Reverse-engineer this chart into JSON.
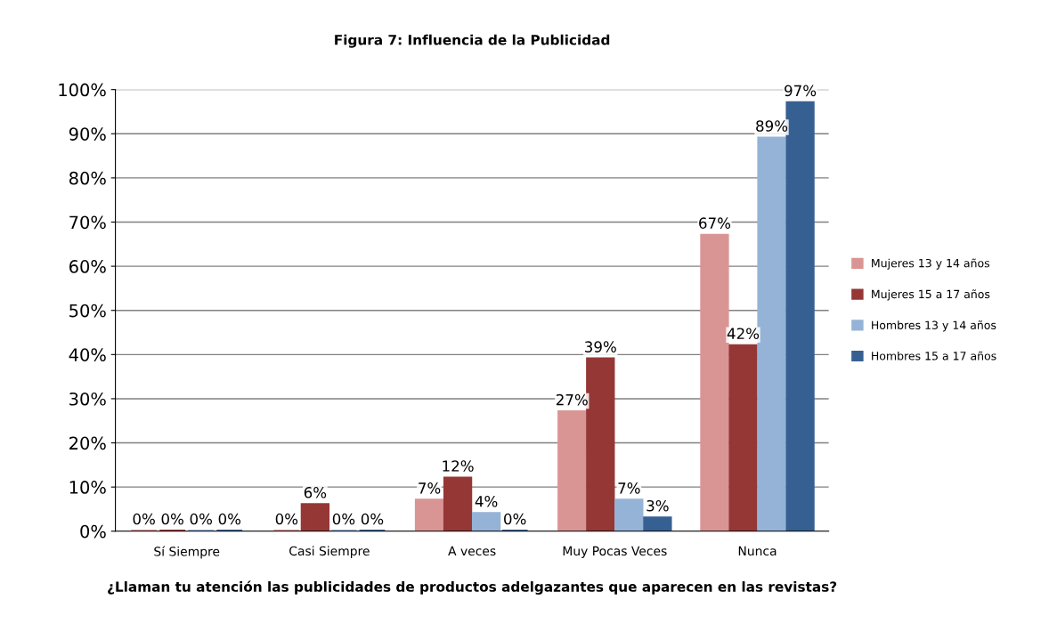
{
  "chart_data": {
    "type": "bar",
    "title": "Figura 7: Influencia de la Publicidad",
    "xlabel": "¿Llaman tu atención las publicidades de productos adelgazantes que aparecen en las revistas?",
    "categories": [
      "Sí Siempre",
      "Casi Siempre",
      "A veces",
      "Muy Pocas Veces",
      "Nunca"
    ],
    "series": [
      {
        "name": "Mujeres 13 y 14 años",
        "color": "#d99594",
        "values": [
          0,
          0,
          7,
          27,
          67
        ],
        "value_labels": [
          "0%",
          "0%",
          "7%",
          "27%",
          "67%"
        ]
      },
      {
        "name": "Mujeres 15 a 17 años",
        "color": "#953735",
        "values": [
          0,
          6,
          12,
          39,
          42
        ],
        "value_labels": [
          "0%",
          "6%",
          "12%",
          "39%",
          "42%"
        ]
      },
      {
        "name": "Hombres 13 y 14 años",
        "color": "#95b3d7",
        "values": [
          0,
          0,
          4,
          7,
          89
        ],
        "value_labels": [
          "0%",
          "0%",
          "4%",
          "7%",
          "89%"
        ]
      },
      {
        "name": "Hombres 15 a 17 años",
        "color": "#376092",
        "values": [
          0,
          0,
          0,
          3,
          97
        ],
        "value_labels": [
          "0%",
          "0%",
          "0%",
          "3%",
          "97%"
        ]
      }
    ],
    "ylim": [
      0,
      100
    ],
    "yticks": [
      {
        "value": 0,
        "label": "0%"
      },
      {
        "value": 10,
        "label": "10%"
      },
      {
        "value": 20,
        "label": "20%"
      },
      {
        "value": 30,
        "label": "30%"
      },
      {
        "value": 40,
        "label": "40%"
      },
      {
        "value": 50,
        "label": "50%"
      },
      {
        "value": 60,
        "label": "60%"
      },
      {
        "value": 70,
        "label": "70%"
      },
      {
        "value": 80,
        "label": "80%"
      },
      {
        "value": 90,
        "label": "90%"
      },
      {
        "value": 100,
        "label": "100%"
      }
    ],
    "grid": "y",
    "legend": "right"
  }
}
